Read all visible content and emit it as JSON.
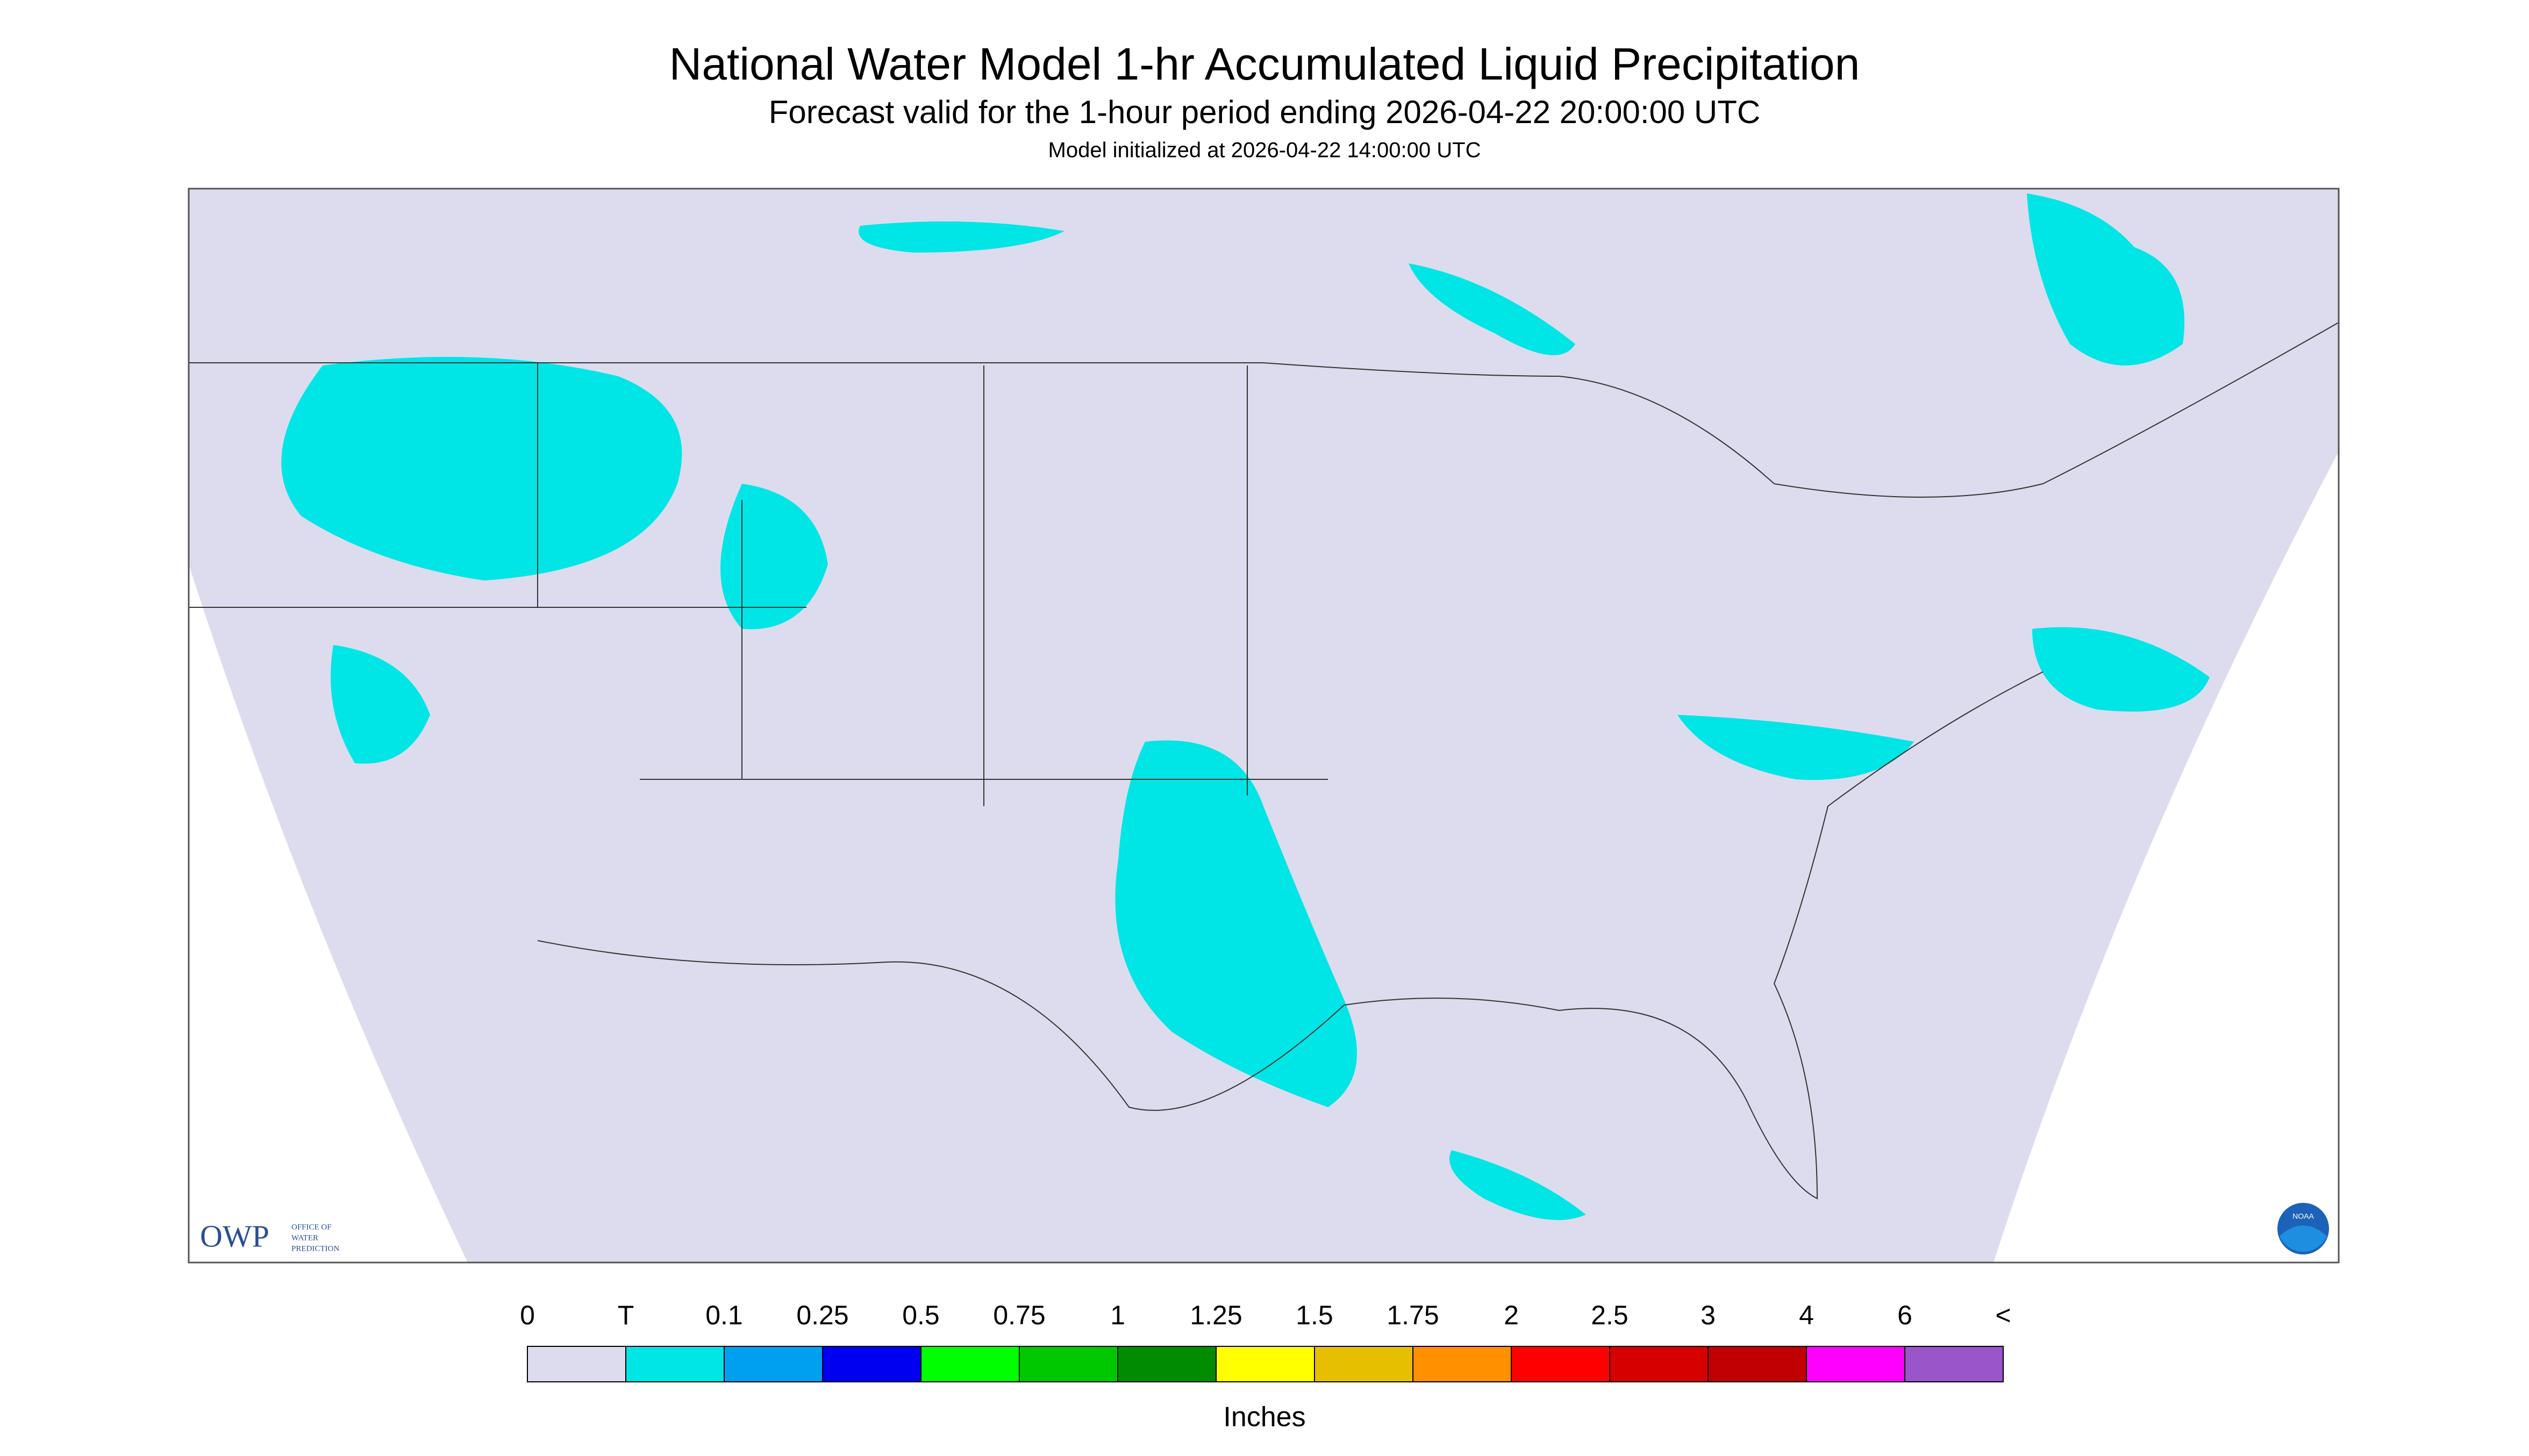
{
  "header": {
    "title": "National Water Model 1-hr Accumulated Liquid Precipitation",
    "subtitle": "Forecast valid for the 1-hour period ending 2026-04-22 20:00:00 UTC",
    "note": "Model initialized at 2026-04-22 14:00:00 UTC"
  },
  "logo": {
    "owp": "OWP",
    "office": [
      "OFFICE OF",
      "WATER",
      "PREDICTION"
    ],
    "noaa": "NOAA"
  },
  "legend": {
    "labels": [
      "0",
      "T",
      "0.1",
      "0.25",
      "0.5",
      "0.75",
      "1",
      "1.25",
      "1.5",
      "1.75",
      "2",
      "2.5",
      "3",
      "4",
      "6",
      "<"
    ],
    "colors": [
      "#dcdcee",
      "#00e6e6",
      "#00a0f0",
      "#0000f0",
      "#00ff00",
      "#00c800",
      "#008c00",
      "#ffff00",
      "#e6c000",
      "#ff9000",
      "#ff0000",
      "#d60000",
      "#c00000",
      "#ff00ff",
      "#9955c9"
    ],
    "unit": "Inches"
  }
}
